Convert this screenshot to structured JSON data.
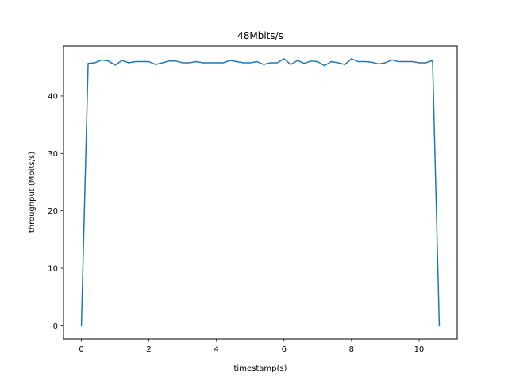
{
  "chart_data": {
    "type": "line",
    "title": "48Mbits/s",
    "xlabel": "timestamp(s)",
    "ylabel": "throughput (Mbits/s)",
    "xlim": [
      -0.53,
      11.13
    ],
    "ylim": [
      -2.3,
      48.7
    ],
    "xticks": [
      0,
      2,
      4,
      6,
      8,
      10
    ],
    "xtick_labels": [
      "0",
      "2",
      "4",
      "6",
      "8",
      "10"
    ],
    "yticks": [
      0,
      10,
      20,
      30,
      40
    ],
    "ytick_labels": [
      "0",
      "10",
      "20",
      "30",
      "40"
    ],
    "grid": false,
    "legend": "none",
    "series": [
      {
        "color": "#1f77b4",
        "x": [
          0,
          0.2,
          0.4,
          0.6,
          0.8,
          1.0,
          1.2,
          1.4,
          1.6,
          1.8,
          2.0,
          2.2,
          2.4,
          2.6,
          2.8,
          3.0,
          3.2,
          3.4,
          3.6,
          3.8,
          4.0,
          4.2,
          4.4,
          4.6,
          4.8,
          5.0,
          5.2,
          5.4,
          5.6,
          5.8,
          6.0,
          6.2,
          6.4,
          6.6,
          6.8,
          7.0,
          7.2,
          7.4,
          7.6,
          7.8,
          8.0,
          8.2,
          8.4,
          8.6,
          8.8,
          9.0,
          9.2,
          9.4,
          9.6,
          9.8,
          10.0,
          10.2,
          10.4,
          10.6
        ],
        "y": [
          0,
          45.7,
          45.8,
          46.3,
          46.1,
          45.4,
          46.2,
          45.8,
          46.0,
          46.0,
          46.0,
          45.5,
          45.8,
          46.1,
          46.1,
          45.8,
          45.8,
          46.0,
          45.8,
          45.8,
          45.8,
          45.8,
          46.2,
          46.0,
          45.8,
          45.8,
          46.0,
          45.5,
          45.8,
          45.8,
          46.5,
          45.5,
          46.2,
          45.7,
          46.1,
          46.0,
          45.3,
          46.0,
          45.8,
          45.5,
          46.5,
          46.0,
          46.0,
          45.9,
          45.6,
          45.8,
          46.3,
          46.0,
          46.0,
          46.0,
          45.8,
          45.8,
          46.2,
          0
        ]
      }
    ]
  }
}
